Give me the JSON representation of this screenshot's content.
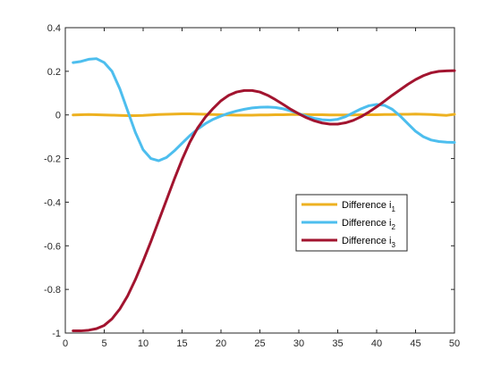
{
  "chart_data": {
    "type": "line",
    "title": "",
    "xlabel": "",
    "ylabel": "",
    "xlim": [
      0,
      50
    ],
    "ylim": [
      -1,
      0.4
    ],
    "xticks": [
      0,
      5,
      10,
      15,
      20,
      25,
      30,
      35,
      40,
      45,
      50
    ],
    "yticks": [
      -1,
      -0.8,
      -0.6,
      -0.4,
      -0.2,
      0,
      0.2,
      0.4
    ],
    "xtick_labels": [
      "0",
      "5",
      "10",
      "15",
      "20",
      "25",
      "30",
      "35",
      "40",
      "45",
      "50"
    ],
    "ytick_labels": [
      "-1",
      "-0.8",
      "-0.6",
      "-0.4",
      "-0.2",
      "0",
      "0.2",
      "0.4"
    ],
    "grid": false,
    "legend_position": "right",
    "series": [
      {
        "name": "Difference i",
        "subscript": "1",
        "color": "#EDB120",
        "x": [
          1,
          2,
          3,
          4,
          5,
          6,
          7,
          8,
          9,
          10,
          11,
          12,
          13,
          14,
          15,
          16,
          17,
          18,
          19,
          20,
          21,
          22,
          23,
          24,
          25,
          26,
          27,
          28,
          29,
          30,
          31,
          32,
          33,
          34,
          35,
          36,
          37,
          38,
          39,
          40,
          41,
          42,
          43,
          44,
          45,
          46,
          47,
          48,
          49,
          50
        ],
        "y": [
          0.0,
          0.001,
          0.002,
          0.001,
          0.0,
          -0.001,
          -0.002,
          -0.003,
          -0.003,
          -0.002,
          0.0,
          0.002,
          0.003,
          0.004,
          0.005,
          0.005,
          0.004,
          0.003,
          0.002,
          0.001,
          0.0,
          -0.001,
          -0.001,
          -0.001,
          0.0,
          0.0,
          0.001,
          0.001,
          0.002,
          0.002,
          0.002,
          0.001,
          0.001,
          0.0,
          0.0,
          0.0,
          0.0,
          0.001,
          0.001,
          0.001,
          0.002,
          0.002,
          0.003,
          0.003,
          0.004,
          0.003,
          0.002,
          0.0,
          -0.002,
          0.003
        ]
      },
      {
        "name": "Difference i",
        "subscript": "2",
        "color": "#4DBEEE",
        "x": [
          1,
          2,
          3,
          4,
          5,
          6,
          7,
          8,
          9,
          10,
          11,
          12,
          13,
          14,
          15,
          16,
          17,
          18,
          19,
          20,
          21,
          22,
          23,
          24,
          25,
          26,
          27,
          28,
          29,
          30,
          31,
          32,
          33,
          34,
          35,
          36,
          37,
          38,
          39,
          40,
          41,
          42,
          43,
          44,
          45,
          46,
          47,
          48,
          49,
          50
        ],
        "y": [
          0.24,
          0.245,
          0.255,
          0.258,
          0.24,
          0.2,
          0.12,
          0.02,
          -0.08,
          -0.16,
          -0.2,
          -0.21,
          -0.195,
          -0.165,
          -0.13,
          -0.095,
          -0.065,
          -0.04,
          -0.02,
          -0.005,
          0.008,
          0.018,
          0.026,
          0.032,
          0.035,
          0.036,
          0.034,
          0.028,
          0.018,
          0.006,
          -0.006,
          -0.016,
          -0.022,
          -0.024,
          -0.02,
          -0.008,
          0.01,
          0.028,
          0.042,
          0.048,
          0.044,
          0.026,
          -0.004,
          -0.04,
          -0.075,
          -0.1,
          -0.115,
          -0.122,
          -0.125,
          -0.126
        ]
      },
      {
        "name": "Difference i",
        "subscript": "3",
        "color": "#A2142F",
        "x": [
          1,
          2,
          3,
          4,
          5,
          6,
          7,
          8,
          9,
          10,
          11,
          12,
          13,
          14,
          15,
          16,
          17,
          18,
          19,
          20,
          21,
          22,
          23,
          24,
          25,
          26,
          27,
          28,
          29,
          30,
          31,
          32,
          33,
          34,
          35,
          36,
          37,
          38,
          39,
          40,
          41,
          42,
          43,
          44,
          45,
          46,
          47,
          48,
          49,
          50
        ],
        "y": [
          -0.99,
          -0.99,
          -0.987,
          -0.98,
          -0.965,
          -0.935,
          -0.89,
          -0.83,
          -0.755,
          -0.67,
          -0.58,
          -0.485,
          -0.39,
          -0.295,
          -0.205,
          -0.125,
          -0.06,
          -0.01,
          0.03,
          0.065,
          0.09,
          0.105,
          0.112,
          0.112,
          0.105,
          0.09,
          0.07,
          0.048,
          0.025,
          0.005,
          -0.013,
          -0.027,
          -0.037,
          -0.042,
          -0.042,
          -0.036,
          -0.025,
          -0.008,
          0.013,
          0.037,
          0.063,
          0.09,
          0.115,
          0.14,
          0.162,
          0.18,
          0.193,
          0.2,
          0.202,
          0.203
        ]
      }
    ]
  }
}
